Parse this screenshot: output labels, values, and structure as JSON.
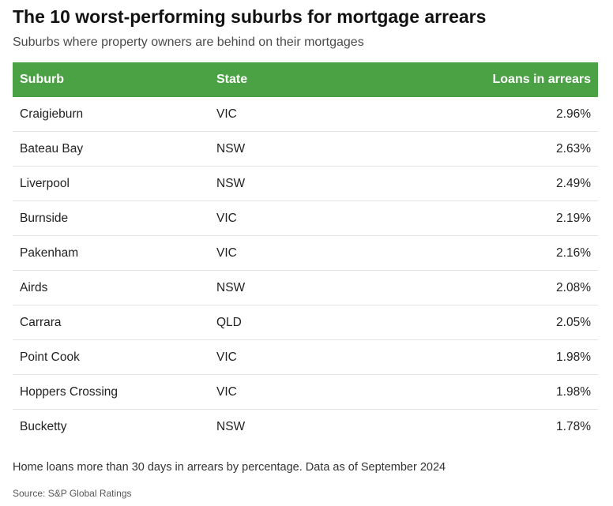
{
  "title": "The 10 worst-performing suburbs for mortgage arrears",
  "subtitle": "Suburbs where property owners are behind on their mortgages",
  "colors": {
    "header_bg": "#4ba244",
    "header_text": "#ffffff",
    "row_divider": "#e3e3e3"
  },
  "chart_data": {
    "type": "table",
    "columns": [
      "Suburb",
      "State",
      "Loans in arrears"
    ],
    "rows": [
      [
        "Craigieburn",
        "VIC",
        "2.96%"
      ],
      [
        "Bateau Bay",
        "NSW",
        "2.63%"
      ],
      [
        "Liverpool",
        "NSW",
        "2.49%"
      ],
      [
        "Burnside",
        "VIC",
        "2.19%"
      ],
      [
        "Pakenham",
        "VIC",
        "2.16%"
      ],
      [
        "Airds",
        "NSW",
        "2.08%"
      ],
      [
        "Carrara",
        "QLD",
        "2.05%"
      ],
      [
        "Point Cook",
        "VIC",
        "1.98%"
      ],
      [
        "Hoppers Crossing",
        "VIC",
        "1.98%"
      ],
      [
        "Bucketty",
        "NSW",
        "1.78%"
      ]
    ]
  },
  "note": "Home loans more than 30 days in arrears by percentage. Data as of September 2024",
  "source": "Source: S&P Global Ratings"
}
